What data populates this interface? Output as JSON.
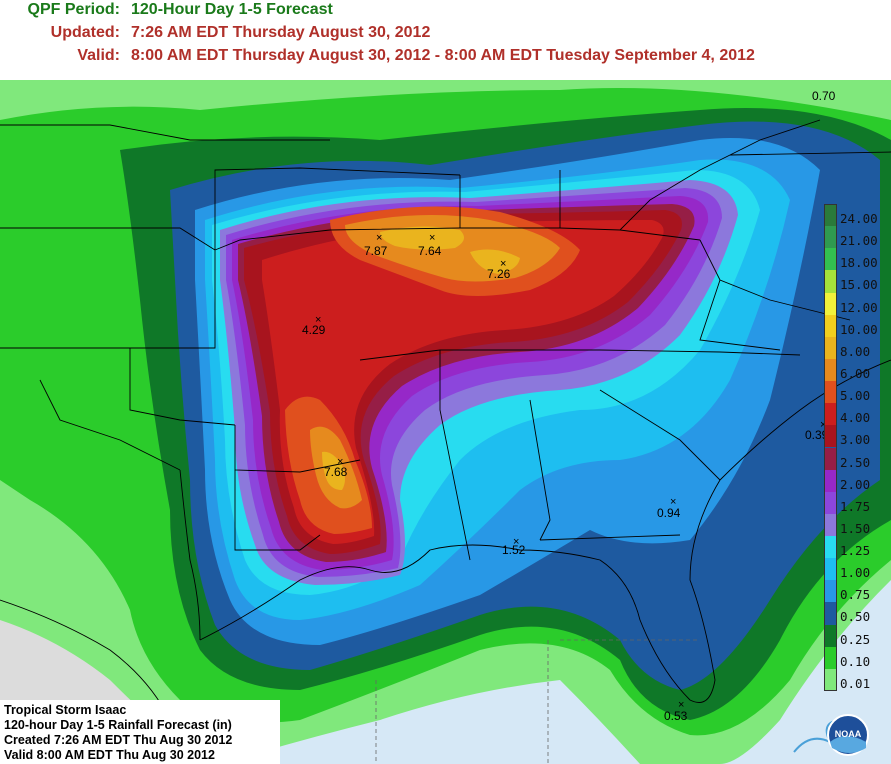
{
  "header": {
    "period_label": "QPF Period:",
    "period_value": "120-Hour Day 1-5 Forecast",
    "updated_label": "Updated:",
    "updated_value": "7:26 AM EDT Thursday August 30, 2012",
    "valid_label": "Valid:",
    "valid_value": "8:00 AM EDT Thursday August 30, 2012 - 8:00 AM EDT Tuesday September 4, 2012"
  },
  "legend": [
    {
      "label": "24.00",
      "color": "#2a7a3a"
    },
    {
      "label": "21.00",
      "color": "#2f9a50"
    },
    {
      "label": "18.00",
      "color": "#33c050"
    },
    {
      "label": "15.00",
      "color": "#a6e23a"
    },
    {
      "label": "12.00",
      "color": "#f2f23a"
    },
    {
      "label": "10.00",
      "color": "#f2cf1e"
    },
    {
      "label": "8.00",
      "color": "#eab41e"
    },
    {
      "label": "6.00",
      "color": "#e68a1e"
    },
    {
      "label": "5.00",
      "color": "#e0501e"
    },
    {
      "label": "4.00",
      "color": "#cc1e1e"
    },
    {
      "label": "3.00",
      "color": "#a8141e"
    },
    {
      "label": "2.50",
      "color": "#961e46"
    },
    {
      "label": "2.00",
      "color": "#9628c8"
    },
    {
      "label": "1.75",
      "color": "#8c46dc"
    },
    {
      "label": "1.50",
      "color": "#8c78dc"
    },
    {
      "label": "1.25",
      "color": "#28dcf0"
    },
    {
      "label": "1.00",
      "color": "#1ebef0"
    },
    {
      "label": "0.75",
      "color": "#2898e6"
    },
    {
      "label": "0.50",
      "color": "#1e5aa0"
    },
    {
      "label": "0.25",
      "color": "#0f7828"
    },
    {
      "label": "0.10",
      "color": "#2bcc2b"
    },
    {
      "label": "0.01",
      "color": "#80e87c"
    }
  ],
  "points": [
    {
      "label": "7.87"
    },
    {
      "label": "7.64"
    },
    {
      "label": "7.26"
    },
    {
      "label": "4.29"
    },
    {
      "label": "7.68"
    },
    {
      "label": "1.52"
    },
    {
      "label": "0.94"
    },
    {
      "label": "0.39"
    },
    {
      "label": "0.70"
    },
    {
      "label": "0.53"
    }
  ],
  "info": {
    "line1": "Tropical Storm Isaac",
    "line2": "120-hour Day 1-5 Rainfall Forecast (in)",
    "line3": "Created 7:26 AM EDT Thu Aug 30 2012",
    "line4": "Valid 8:00 AM EDT Thu Aug 30 2012"
  },
  "logo": {
    "text": "NOAA"
  }
}
